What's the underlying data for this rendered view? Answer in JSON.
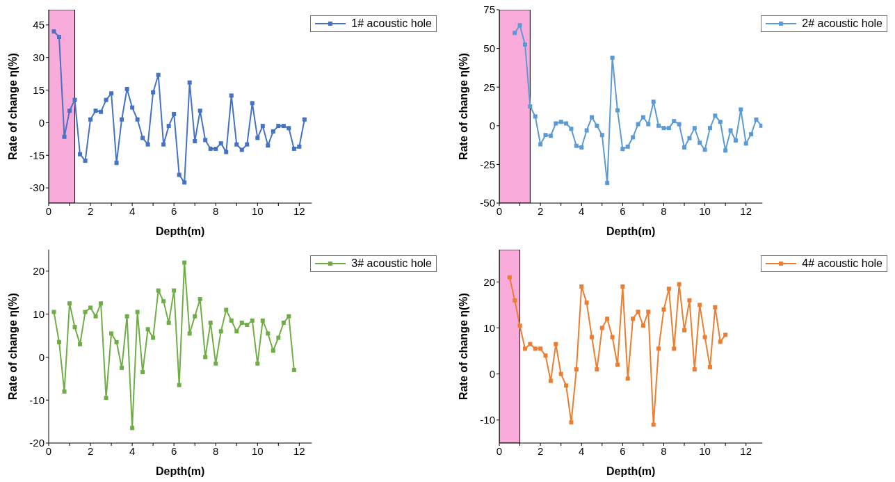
{
  "chart_data": [
    {
      "type": "line",
      "xlabel": "Depth(m)",
      "ylabel": "Rate of change η(%)",
      "xlim": [
        0,
        12.6
      ],
      "ylim": [
        -37,
        52
      ],
      "xticks": [
        0,
        {
          "value": 1,
          "label": null
        },
        2,
        {
          "value": 3,
          "label": null
        },
        4,
        {
          "value": 5,
          "label": null
        },
        6,
        {
          "value": 7,
          "label": null
        },
        8,
        {
          "value": 9,
          "label": null
        },
        10,
        {
          "value": 11,
          "label": null
        },
        12
      ],
      "yticks": [
        -30,
        -15,
        0,
        15,
        30,
        45
      ],
      "legend": "top right",
      "marker": "square",
      "line_style": "solid",
      "grid": false,
      "bands": [
        {
          "axis": "x",
          "from": 0,
          "to": 1.25,
          "color": "#f9acdc"
        }
      ],
      "x": [
        0.25,
        0.5,
        0.75,
        1,
        1.25,
        1.5,
        1.75,
        2,
        2.25,
        2.5,
        2.75,
        3,
        3.25,
        3.5,
        3.75,
        4,
        4.25,
        4.5,
        4.75,
        5,
        5.25,
        5.5,
        5.75,
        6,
        6.25,
        6.5,
        6.75,
        7,
        7.25,
        7.5,
        7.75,
        8,
        8.25,
        8.5,
        8.75,
        9,
        9.25,
        9.5,
        9.75,
        10,
        10.25,
        10.5,
        10.75,
        11,
        11.25,
        11.5,
        11.75,
        12,
        12.25
      ],
      "series": [
        {
          "name": "1# acoustic hole",
          "color": "#4472c4",
          "values": [
            42,
            39.5,
            -6.5,
            5.5,
            10.5,
            -14.5,
            -17.5,
            1.5,
            5.5,
            5,
            10.5,
            13.5,
            -18.5,
            1.5,
            15.5,
            7,
            1.5,
            -7,
            -10,
            14,
            22,
            -10,
            -1.5,
            4,
            -24,
            -27.5,
            18.5,
            -8.5,
            5.5,
            -8,
            -12,
            -12,
            -9.5,
            -13.5,
            12.5,
            -10,
            -12.5,
            -10,
            9,
            -7,
            -1.5,
            -10.5,
            -4,
            -1.5,
            -1.5,
            -2.5,
            -12,
            -11,
            1.5
          ]
        }
      ]
    },
    {
      "type": "line",
      "xlabel": "Depth(m)",
      "ylabel": "Rate of change η(%)",
      "xlim": [
        0,
        12.8
      ],
      "ylim": [
        -50,
        75
      ],
      "xticks": [
        0,
        {
          "value": 1,
          "label": null
        },
        2,
        {
          "value": 3,
          "label": null
        },
        4,
        {
          "value": 5,
          "label": null
        },
        6,
        {
          "value": 7,
          "label": null
        },
        8,
        {
          "value": 9,
          "label": null
        },
        10,
        {
          "value": 11,
          "label": null
        },
        12
      ],
      "yticks": [
        -50,
        -25,
        0,
        25,
        50,
        75
      ],
      "legend": "top right",
      "marker": "square",
      "line_style": "solid",
      "grid": false,
      "bands": [
        {
          "axis": "x",
          "from": 0,
          "to": 1.5,
          "color": "#f9acdc"
        }
      ],
      "x": [
        0.75,
        1,
        1.25,
        1.5,
        1.75,
        2,
        2.25,
        2.5,
        2.75,
        3,
        3.25,
        3.5,
        3.75,
        4,
        4.25,
        4.5,
        4.75,
        5,
        5.25,
        5.5,
        5.75,
        6,
        6.25,
        6.5,
        6.75,
        7,
        7.25,
        7.5,
        7.75,
        8,
        8.25,
        8.5,
        8.75,
        9,
        9.25,
        9.5,
        9.75,
        10,
        10.25,
        10.5,
        10.75,
        11,
        11.25,
        11.5,
        11.75,
        12,
        12.25,
        12.5,
        12.75
      ],
      "series": [
        {
          "name": "2# acoustic hole",
          "color": "#5b9bd5",
          "values": [
            60,
            65,
            52.5,
            12.5,
            6,
            -12,
            -6,
            -6.5,
            1.5,
            2.5,
            1.5,
            -2,
            -13,
            -14,
            -3,
            5.5,
            0,
            -6,
            -37,
            44,
            10,
            -15,
            -13.5,
            -7.5,
            1,
            5.5,
            1,
            15.5,
            0,
            -1.5,
            -1.5,
            3,
            1,
            -14,
            -8,
            -1.5,
            -11,
            -15.5,
            -1.5,
            6.5,
            2.5,
            -16,
            -3,
            -9.5,
            10.5,
            -11.5,
            -5.5,
            4,
            0
          ]
        }
      ]
    },
    {
      "type": "line",
      "xlabel": "Depth(m)",
      "ylabel": "Rate of change η(%)",
      "xlim": [
        0,
        12.6
      ],
      "ylim": [
        -20,
        25
      ],
      "xticks": [
        0,
        {
          "value": 1,
          "label": null
        },
        2,
        {
          "value": 3,
          "label": null
        },
        4,
        {
          "value": 5,
          "label": null
        },
        6,
        {
          "value": 7,
          "label": null
        },
        8,
        {
          "value": 9,
          "label": null
        },
        10,
        {
          "value": 11,
          "label": null
        },
        12
      ],
      "yticks": [
        -20,
        -10,
        0,
        10,
        20
      ],
      "legend": "top right",
      "marker": "square",
      "line_style": "solid",
      "grid": false,
      "x": [
        0.25,
        0.5,
        0.75,
        1,
        1.25,
        1.5,
        1.75,
        2,
        2.25,
        2.5,
        2.75,
        3,
        3.25,
        3.5,
        3.75,
        4,
        4.25,
        4.5,
        4.75,
        5,
        5.25,
        5.5,
        5.75,
        6,
        6.25,
        6.5,
        6.75,
        7,
        7.25,
        7.5,
        7.75,
        8,
        8.25,
        8.5,
        8.75,
        9,
        9.25,
        9.5,
        9.75,
        10,
        10.25,
        10.5,
        10.75,
        11,
        11.25,
        11.5,
        11.75
      ],
      "series": [
        {
          "name": "3# acoustic hole",
          "color": "#70ad47",
          "values": [
            10.5,
            3.5,
            -8,
            12.5,
            7,
            3,
            10.5,
            11.5,
            9.5,
            12.5,
            -9.5,
            5.5,
            3.5,
            -2.5,
            9.5,
            -16.5,
            10.5,
            -3.5,
            6.5,
            4.5,
            15.5,
            13,
            8,
            15.5,
            -6.5,
            22,
            5.5,
            9.5,
            13.5,
            0,
            8,
            -1.5,
            6,
            11,
            8.5,
            6,
            8,
            7.5,
            8.5,
            -1.5,
            8.5,
            5.5,
            1.5,
            4.5,
            8,
            9.5,
            -3
          ]
        }
      ]
    },
    {
      "type": "line",
      "xlabel": "Depth(m)",
      "ylabel": "Rate of change η(%)",
      "xlim": [
        0,
        12.8
      ],
      "ylim": [
        -15,
        27
      ],
      "xticks": [
        0,
        {
          "value": 1,
          "label": null
        },
        2,
        {
          "value": 3,
          "label": null
        },
        4,
        {
          "value": 5,
          "label": null
        },
        6,
        {
          "value": 7,
          "label": null
        },
        8,
        {
          "value": 9,
          "label": null
        },
        10,
        {
          "value": 11,
          "label": null
        },
        12
      ],
      "yticks": [
        -10,
        0,
        10,
        20
      ],
      "legend": "top right",
      "marker": "square",
      "line_style": "solid",
      "grid": false,
      "bands": [
        {
          "axis": "x",
          "from": 0,
          "to": 1,
          "color": "#f9acdc"
        }
      ],
      "x": [
        0.5,
        0.75,
        1,
        1.25,
        1.5,
        1.75,
        2,
        2.25,
        2.5,
        2.75,
        3,
        3.25,
        3.5,
        3.75,
        4,
        4.25,
        4.5,
        4.75,
        5,
        5.25,
        5.5,
        5.75,
        6,
        6.25,
        6.5,
        6.75,
        7,
        7.25,
        7.5,
        7.75,
        8,
        8.25,
        8.5,
        8.75,
        9,
        9.25,
        9.5,
        9.75,
        10,
        10.25,
        10.5,
        10.75,
        11
      ],
      "series": [
        {
          "name": "4# acoustic hole",
          "color": "#ed7d31",
          "values": [
            21,
            16,
            10.5,
            5.5,
            6.5,
            5.5,
            5.5,
            4,
            -1.5,
            6.5,
            0,
            -2.5,
            -10.5,
            1,
            19,
            15.5,
            8,
            1,
            10,
            12,
            8,
            2,
            19,
            -1,
            12,
            13.5,
            10.5,
            13.5,
            -11,
            5.5,
            14,
            18.5,
            5.5,
            19.5,
            9.5,
            16,
            1,
            15,
            8,
            1.5,
            14.5,
            7,
            8.5
          ]
        }
      ]
    }
  ]
}
